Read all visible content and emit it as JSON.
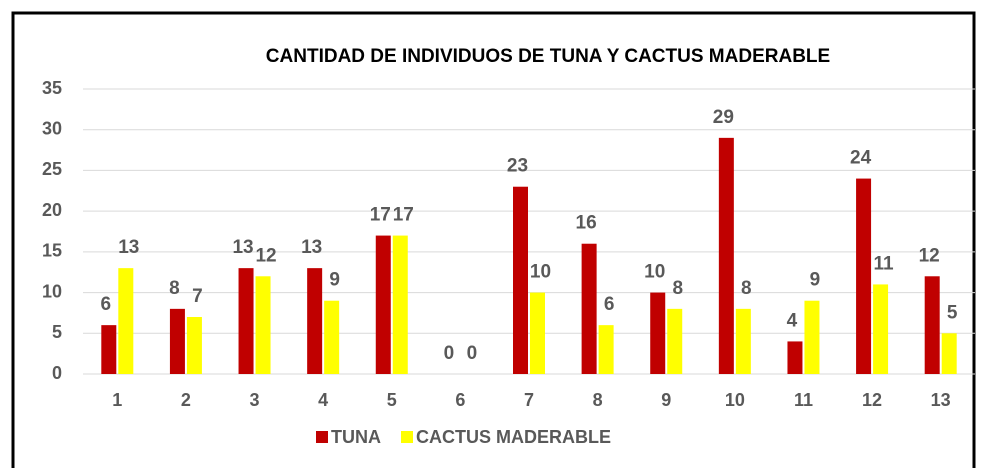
{
  "chart_data": {
    "type": "bar",
    "title": "CANTIDAD DE INDIVIDUOS DE TUNA Y CACTUS MADERABLE",
    "categories": [
      "1",
      "2",
      "3",
      "4",
      "5",
      "6",
      "7",
      "8",
      "9",
      "10",
      "11",
      "12",
      "13"
    ],
    "series": [
      {
        "name": "TUNA",
        "color": "#c00000",
        "values": [
          6,
          8,
          13,
          13,
          17,
          0,
          23,
          16,
          10,
          29,
          4,
          24,
          12
        ]
      },
      {
        "name": "CACTUS MADERABLE",
        "color": "#ffff00",
        "values": [
          13,
          7,
          12,
          9,
          17,
          0,
          10,
          6,
          8,
          8,
          9,
          11,
          5
        ]
      }
    ],
    "ylim": [
      0,
      35
    ],
    "yticks": [
      0,
      5,
      10,
      15,
      20,
      25,
      30,
      35
    ],
    "grid": true,
    "legend": "bottom"
  }
}
